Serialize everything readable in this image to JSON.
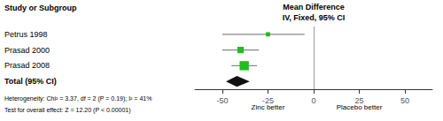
{
  "chart_data": {
    "type": "forest",
    "header": "Study or Subgroup",
    "column_header": [
      "Mean Difference",
      "IV, Fixed, 95% CI"
    ],
    "categories": [
      "Petrus 1998",
      "Prasad 2000",
      "Prasad 2008"
    ],
    "values": [
      -25,
      -40,
      -38
    ],
    "ci_low": [
      -50,
      -50,
      -45
    ],
    "ci_high": [
      -5,
      -30,
      -31
    ],
    "sizes": [
      6,
      9,
      13
    ],
    "color": "#22bb22",
    "line_color": "#888888",
    "total": {
      "label": "Total (95% CI)",
      "value": -42,
      "ci_low": -48,
      "ci_high": -35,
      "color": "#111111"
    },
    "xlim": [
      -65,
      65
    ],
    "xticks": [
      -50,
      -25,
      0,
      25,
      50
    ],
    "zero_line": 0,
    "xlabels": {
      "left": "Zinc better",
      "right": "Placebo better"
    },
    "notes": [
      "Heterogeneity: Chi² = 3.37, df = 2 (P = 0.19); I² = 41%",
      "Test for overall effect: Z = 12.20 (P < 0.00001)"
    ],
    "grid": false
  }
}
